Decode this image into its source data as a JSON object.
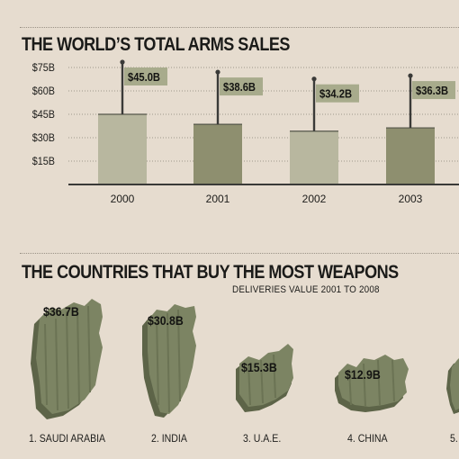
{
  "section1": {
    "title": "THE WORLD’S TOTAL ARMS SALES"
  },
  "section2": {
    "title": "THE COUNTRIES THAT BUY THE MOST WEAPONS",
    "subtitle": "DELIVERIES VALUE 2001 TO 2008",
    "buyers": [
      {
        "rank_label": "1. SAUDI ARABIA",
        "value_label": "$36.7B",
        "value": 36.7
      },
      {
        "rank_label": "2. INDIA",
        "value_label": "$30.8B",
        "value": 30.8
      },
      {
        "rank_label": "3. U.A.E.",
        "value_label": "$15.3B",
        "value": 15.3
      },
      {
        "rank_label": "4. CHINA",
        "value_label": "$12.9B",
        "value": 12.9
      },
      {
        "rank_label": "5.",
        "value_label": "",
        "value": null
      }
    ]
  },
  "colors": {
    "background": "#e6dccf",
    "bar_light": "#b8b79f",
    "bar_dark": "#8e8f6f",
    "flag": "#a8ab8c",
    "pin": "#3a3a38",
    "map_front": "#7c8463",
    "map_side": "#5d6448"
  },
  "chart_data": [
    {
      "type": "bar",
      "title": "THE WORLD’S TOTAL ARMS SALES",
      "categories": [
        "2000",
        "2001",
        "2002",
        "2003"
      ],
      "values": [
        45.0,
        38.6,
        34.2,
        36.3
      ],
      "data_labels": [
        "$45.0B",
        "$38.6B",
        "$34.2B",
        "$36.3B"
      ],
      "y_ticks": [
        {
          "value": 15,
          "label": "$15B"
        },
        {
          "value": 30,
          "label": "$30B"
        },
        {
          "value": 45,
          "label": "$45B"
        },
        {
          "value": 60,
          "label": "$60B"
        },
        {
          "value": 75,
          "label": "$75B"
        }
      ],
      "ylim": [
        0,
        75
      ],
      "grid": true,
      "xlabel": "",
      "ylabel": ""
    }
  ]
}
